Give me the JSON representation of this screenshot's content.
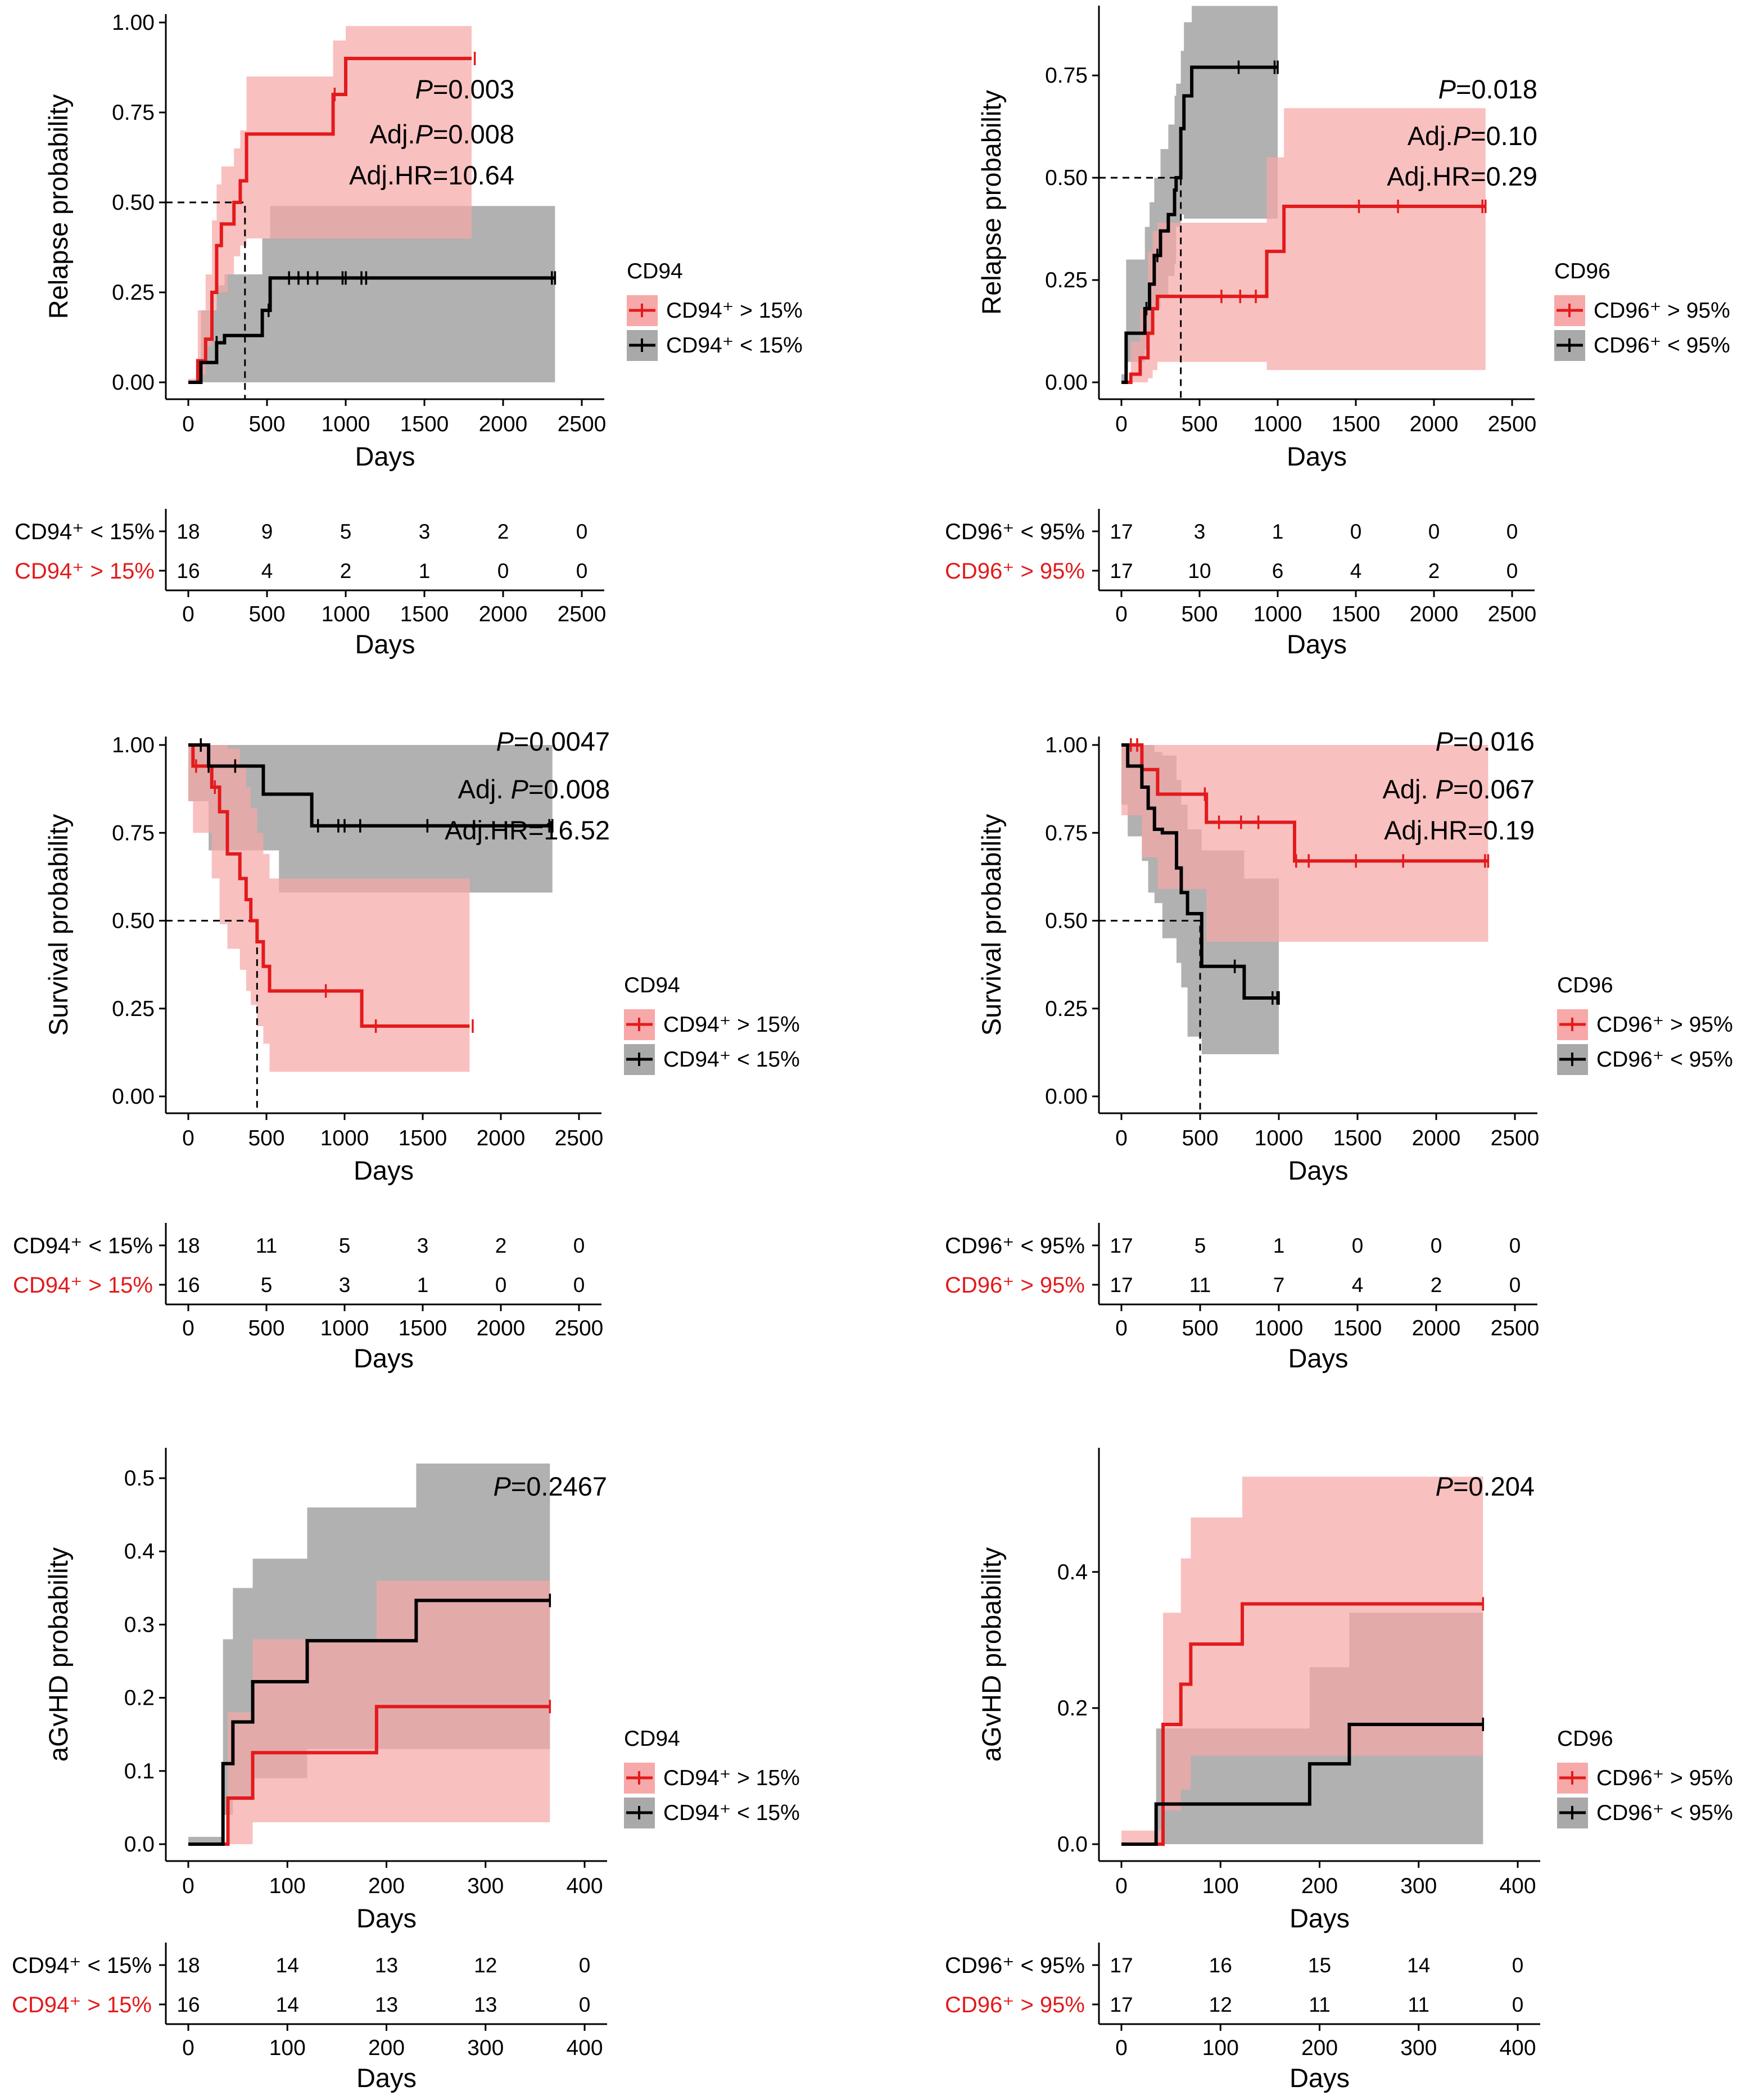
{
  "colors": {
    "high_line": "#e31a1c",
    "high_band": "#f7a8a8",
    "low_line": "#000000",
    "low_band": "#a9a9a9",
    "overlap_band": "#c87070",
    "high_label": "#e31a1c",
    "low_label": "#000000"
  },
  "chart_data": [
    {
      "type": "line",
      "subtype": "kaplan-meier-step",
      "ylabel": "Relapse probability",
      "xlabel": "Days",
      "xlim": [
        0,
        2500
      ],
      "ylim": [
        0,
        1.0
      ],
      "xticks": [
        "0",
        "500",
        "1000",
        "1500",
        "2000",
        "2500"
      ],
      "yticks": [
        "0.00",
        "0.25",
        "0.50",
        "0.75",
        "1.00"
      ],
      "annotations": [
        {
          "italic": "P",
          "rest": "=0.003"
        },
        {
          "pre": "Adj.",
          "italic": "P",
          "rest": "=0.008"
        },
        {
          "pre": "Adj.HR=10.64"
        }
      ],
      "legend": {
        "title": "CD94",
        "position": "right"
      },
      "series": [
        {
          "name": "CD94⁺ > 15%",
          "group": "high",
          "x": [
            0,
            60,
            110,
            150,
            180,
            210,
            250,
            290,
            330,
            370,
            920,
            1000,
            1800
          ],
          "y": [
            0,
            0.06,
            0.12,
            0.25,
            0.38,
            0.44,
            0.44,
            0.5,
            0.56,
            0.69,
            0.8,
            0.9,
            0.9
          ],
          "band_lo": [
            0,
            0.01,
            0.02,
            0.1,
            0.2,
            0.25,
            0.25,
            0.3,
            0.35,
            0.38,
            0.4,
            0.4,
            0.4
          ],
          "band_hi": [
            0,
            0.2,
            0.3,
            0.45,
            0.55,
            0.6,
            0.6,
            0.65,
            0.7,
            0.85,
            0.95,
            0.99,
            0.99
          ],
          "censor_x": [
            930,
            1820
          ]
        },
        {
          "name": "CD94⁺ < 15%",
          "group": "low",
          "x": [
            0,
            80,
            180,
            230,
            470,
            520,
            2330
          ],
          "y": [
            0,
            0.055,
            0.11,
            0.13,
            0.2,
            0.29,
            0.29
          ],
          "band_lo": [
            0,
            0,
            0,
            0,
            0,
            0,
            0
          ],
          "band_hi": [
            0,
            0.2,
            0.27,
            0.3,
            0.4,
            0.49,
            0.49
          ],
          "censor_x": [
            180,
            510,
            640,
            700,
            760,
            820,
            980,
            1000,
            1100,
            1130,
            2310,
            2330
          ]
        }
      ],
      "median_x": 360,
      "risk_table": {
        "xlabel": "Days",
        "rows": [
          {
            "label": "CD94⁺ < 15%",
            "group": "low",
            "values": [
              "18",
              "9",
              "5",
              "3",
              "2",
              "0"
            ]
          },
          {
            "label": "CD94⁺ > 15%",
            "group": "high",
            "values": [
              "16",
              "4",
              "2",
              "1",
              "0",
              "0"
            ]
          }
        ]
      }
    },
    {
      "type": "line",
      "subtype": "kaplan-meier-step",
      "ylabel": "Relapse probability",
      "xlabel": "Days",
      "xlim": [
        0,
        2500
      ],
      "ylim": [
        0,
        0.9
      ],
      "xticks": [
        "0",
        "500",
        "1000",
        "1500",
        "2000",
        "2500"
      ],
      "yticks": [
        "0.00",
        "0.25",
        "0.50",
        "0.75"
      ],
      "annotations": [
        {
          "italic": "P",
          "rest": "=0.018"
        },
        {
          "pre": "Adj.",
          "italic": "P",
          "rest": "=0.10"
        },
        {
          "pre": "Adj.HR=0.29"
        }
      ],
      "legend": {
        "title": "CD96",
        "position": "right"
      },
      "series": [
        {
          "name": "CD96⁺ > 95%",
          "group": "high",
          "x": [
            0,
            60,
            120,
            170,
            200,
            230,
            930,
            1040,
            2330
          ],
          "y": [
            0,
            0.02,
            0.06,
            0.12,
            0.18,
            0.21,
            0.32,
            0.43,
            0.43
          ],
          "band_lo": [
            0,
            0,
            0,
            0,
            0.01,
            0.03,
            0.05,
            0.03,
            0.03
          ],
          "band_hi": [
            0,
            0.1,
            0.18,
            0.32,
            0.37,
            0.39,
            0.55,
            0.67,
            0.67
          ],
          "censor_x": [
            640,
            760,
            860,
            1520,
            1770,
            2310,
            2330
          ]
        },
        {
          "name": "CD96⁺ < 95%",
          "group": "low",
          "x": [
            0,
            30,
            150,
            180,
            210,
            250,
            300,
            340,
            350,
            380,
            400,
            450,
            1000
          ],
          "y": [
            0,
            0.12,
            0.18,
            0.24,
            0.31,
            0.37,
            0.41,
            0.47,
            0.5,
            0.62,
            0.7,
            0.77,
            0.77
          ],
          "band_lo": [
            0,
            0.02,
            0.05,
            0.08,
            0.12,
            0.18,
            0.21,
            0.26,
            0.29,
            0.38,
            0.41,
            0.4,
            0.4
          ],
          "band_hi": [
            0,
            0.3,
            0.38,
            0.44,
            0.5,
            0.57,
            0.63,
            0.7,
            0.73,
            0.81,
            0.88,
            0.92,
            0.92
          ],
          "censor_x": [
            160,
            230,
            750,
            980,
            1000
          ]
        }
      ],
      "median_x": 380,
      "risk_table": {
        "xlabel": "Days",
        "rows": [
          {
            "label": "CD96⁺ < 95%",
            "group": "low",
            "values": [
              "17",
              "3",
              "1",
              "0",
              "0",
              "0"
            ]
          },
          {
            "label": "CD96⁺ > 95%",
            "group": "high",
            "values": [
              "17",
              "10",
              "6",
              "4",
              "2",
              "0"
            ]
          }
        ]
      }
    },
    {
      "type": "line",
      "subtype": "kaplan-meier-step",
      "ylabel": "Survival probability",
      "xlabel": "Days",
      "xlim": [
        0,
        2500
      ],
      "ylim": [
        0,
        1.0
      ],
      "xticks": [
        "0",
        "500",
        "1000",
        "1500",
        "2000",
        "2500"
      ],
      "yticks": [
        "0.00",
        "0.25",
        "0.50",
        "0.75",
        "1.00"
      ],
      "annotations": [
        {
          "italic": "P",
          "rest": "=0.0047"
        },
        {
          "pre": "Adj. ",
          "italic": "P",
          "rest": "=0.008"
        },
        {
          "pre": "Adj.HR=16.52"
        }
      ],
      "legend": {
        "title": "CD94",
        "position": "right"
      },
      "series": [
        {
          "name": "CD94⁺ > 15%",
          "group": "high",
          "x": [
            0,
            30,
            150,
            200,
            250,
            330,
            370,
            400,
            440,
            480,
            520,
            1110,
            1800
          ],
          "y": [
            1,
            0.94,
            0.88,
            0.81,
            0.69,
            0.62,
            0.56,
            0.5,
            0.44,
            0.37,
            0.3,
            0.2,
            0.2
          ],
          "band_lo": [
            1,
            0.84,
            0.75,
            0.62,
            0.49,
            0.42,
            0.36,
            0.3,
            0.26,
            0.2,
            0.15,
            0.07,
            0.07
          ],
          "band_hi": [
            1,
            1,
            1,
            1,
            0.99,
            0.94,
            0.88,
            0.82,
            0.75,
            0.69,
            0.62,
            0.62,
            0.62
          ],
          "censor_x": [
            50,
            170,
            880,
            1200,
            1820
          ]
        },
        {
          "name": "CD94⁺ < 15%",
          "group": "low",
          "x": [
            0,
            130,
            480,
            580,
            790,
            2330
          ],
          "y": [
            1,
            0.94,
            0.86,
            0.86,
            0.77,
            0.77
          ],
          "band_lo": [
            1,
            0.84,
            0.7,
            0.7,
            0.58,
            0.58
          ],
          "band_hi": [
            1,
            1,
            1,
            1,
            1,
            1
          ],
          "censor_x": [
            80,
            130,
            300,
            830,
            960,
            1000,
            1100,
            1530,
            2310,
            2330
          ]
        }
      ],
      "median_x": 440,
      "risk_table": {
        "xlabel": "Days",
        "rows": [
          {
            "label": "CD94⁺ < 15%",
            "group": "low",
            "values": [
              "18",
              "11",
              "5",
              "3",
              "2",
              "0"
            ]
          },
          {
            "label": "CD94⁺ > 15%",
            "group": "high",
            "values": [
              "16",
              "5",
              "3",
              "1",
              "0",
              "0"
            ]
          }
        ]
      }
    },
    {
      "type": "line",
      "subtype": "kaplan-meier-step",
      "ylabel": "Survival probability",
      "xlabel": "Days",
      "xlim": [
        0,
        2500
      ],
      "ylim": [
        0,
        1.0
      ],
      "xticks": [
        "0",
        "500",
        "1000",
        "1500",
        "2000",
        "2500"
      ],
      "yticks": [
        "0.00",
        "0.25",
        "0.50",
        "0.75",
        "1.00"
      ],
      "annotations": [
        {
          "italic": "P",
          "rest": "=0.016"
        },
        {
          "pre": "Adj. ",
          "italic": "P",
          "rest": "=0.067"
        },
        {
          "pre": "Adj.HR=0.19"
        }
      ],
      "legend": {
        "title": "CD96",
        "position": "right"
      },
      "series": [
        {
          "name": "CD96⁺ > 95%",
          "group": "high",
          "x": [
            0,
            130,
            230,
            540,
            1100,
            2330
          ],
          "y": [
            1,
            0.93,
            0.86,
            0.78,
            0.67,
            0.67
          ],
          "band_lo": [
            1,
            0.8,
            0.68,
            0.59,
            0.44,
            0.44
          ],
          "band_hi": [
            1,
            1,
            1,
            1,
            1,
            1
          ],
          "censor_x": [
            60,
            100,
            530,
            620,
            760,
            870,
            1110,
            1190,
            1490,
            1790,
            2310,
            2330
          ]
        },
        {
          "name": "CD96⁺ < 95%",
          "group": "low",
          "x": [
            0,
            40,
            130,
            170,
            210,
            260,
            350,
            380,
            420,
            510,
            780,
            1000
          ],
          "y": [
            1,
            0.94,
            0.88,
            0.82,
            0.76,
            0.75,
            0.65,
            0.58,
            0.52,
            0.37,
            0.28,
            0.28
          ],
          "band_lo": [
            1,
            0.83,
            0.74,
            0.67,
            0.58,
            0.55,
            0.45,
            0.38,
            0.31,
            0.17,
            0.12,
            0.12
          ],
          "band_hi": [
            1,
            1,
            1,
            1,
            0.98,
            0.97,
            0.9,
            0.83,
            0.76,
            0.7,
            0.62,
            0.62
          ],
          "censor_x": [
            720,
            960,
            990,
            1000
          ]
        }
      ],
      "median_x": 500,
      "risk_table": {
        "xlabel": "Days",
        "rows": [
          {
            "label": "CD96⁺ < 95%",
            "group": "low",
            "values": [
              "17",
              "5",
              "1",
              "0",
              "0",
              "0"
            ]
          },
          {
            "label": "CD96⁺ > 95%",
            "group": "high",
            "values": [
              "17",
              "11",
              "7",
              "4",
              "2",
              "0"
            ]
          }
        ]
      }
    },
    {
      "type": "line",
      "subtype": "kaplan-meier-step",
      "ylabel": "aGvHD probability",
      "xlabel": "Days",
      "xlim": [
        0,
        400
      ],
      "ylim": [
        0,
        0.53
      ],
      "xticks": [
        "0",
        "100",
        "200",
        "300",
        "400"
      ],
      "yticks": [
        "0.0",
        "0.1",
        "0.2",
        "0.3",
        "0.4",
        "0.5"
      ],
      "annotations": [
        {
          "italic": "P",
          "rest": "=0.2467"
        }
      ],
      "legend": {
        "title": "CD94",
        "position": "right"
      },
      "series": [
        {
          "name": "CD94⁺ > 15%",
          "group": "high",
          "x": [
            0,
            40,
            65,
            190,
            365
          ],
          "y": [
            0,
            0.063,
            0.125,
            0.188,
            0.188
          ],
          "band_lo": [
            0,
            0,
            0,
            0.03,
            0.03
          ],
          "band_hi": [
            0,
            0.18,
            0.28,
            0.36,
            0.36
          ],
          "censor_x": [
            365
          ]
        },
        {
          "name": "CD94⁺ < 15%",
          "group": "low",
          "x": [
            0,
            35,
            45,
            65,
            120,
            230,
            365
          ],
          "y": [
            0,
            0.11,
            0.167,
            0.222,
            0.278,
            0.333,
            0.333
          ],
          "band_lo": [
            0,
            0.01,
            0.04,
            0.06,
            0.09,
            0.13,
            0.13
          ],
          "band_hi": [
            0,
            0.28,
            0.35,
            0.39,
            0.46,
            0.52,
            0.52
          ],
          "censor_x": [
            365
          ]
        }
      ],
      "risk_table": {
        "xlabel": "Days",
        "rows": [
          {
            "label": "CD94⁺ < 15%",
            "group": "low",
            "values": [
              "18",
              "14",
              "13",
              "12",
              "0"
            ]
          },
          {
            "label": "CD94⁺ > 15%",
            "group": "high",
            "values": [
              "16",
              "14",
              "13",
              "13",
              "0"
            ]
          }
        ]
      }
    },
    {
      "type": "line",
      "subtype": "kaplan-meier-step",
      "ylabel": "aGvHD probability",
      "xlabel": "Days",
      "xlim": [
        0,
        400
      ],
      "ylim": [
        0,
        0.57
      ],
      "xticks": [
        "0",
        "100",
        "200",
        "300",
        "400"
      ],
      "yticks": [
        "0.0",
        "0.2",
        "0.4"
      ],
      "annotations": [
        {
          "italic": "P",
          "rest": "=0.204"
        }
      ],
      "legend": {
        "title": "CD96",
        "position": "right"
      },
      "series": [
        {
          "name": "CD96⁺ > 95%",
          "group": "high",
          "x": [
            0,
            42,
            60,
            70,
            122,
            365
          ],
          "y": [
            0,
            0.176,
            0.235,
            0.294,
            0.353,
            0.353
          ],
          "band_lo": [
            0,
            0.02,
            0.05,
            0.08,
            0.13,
            0.13
          ],
          "band_hi": [
            0,
            0.34,
            0.42,
            0.48,
            0.54,
            0.54
          ],
          "censor_x": [
            365
          ]
        },
        {
          "name": "CD96⁺ < 95%",
          "group": "low",
          "x": [
            0,
            35,
            190,
            230,
            365
          ],
          "y": [
            0,
            0.059,
            0.118,
            0.176,
            0.176
          ],
          "band_lo": [
            0,
            0,
            0,
            0,
            0
          ],
          "band_hi": [
            0,
            0.17,
            0.26,
            0.34,
            0.34
          ],
          "censor_x": [
            365
          ]
        }
      ],
      "risk_table": {
        "xlabel": "Days",
        "rows": [
          {
            "label": "CD96⁺ < 95%",
            "group": "low",
            "values": [
              "17",
              "16",
              "15",
              "14",
              "0"
            ]
          },
          {
            "label": "CD96⁺ > 95%",
            "group": "high",
            "values": [
              "17",
              "12",
              "11",
              "11",
              "0"
            ]
          }
        ]
      }
    }
  ]
}
